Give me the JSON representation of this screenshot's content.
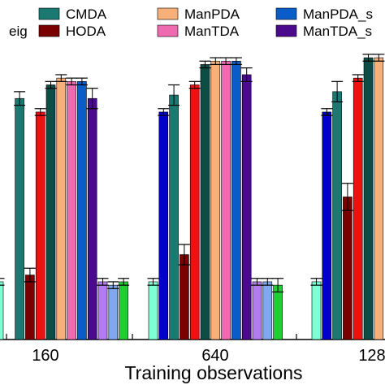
{
  "chart_data": {
    "type": "bar",
    "xlabel": "Training observations",
    "ylabel": "",
    "title": "",
    "categories": [
      "160",
      "640",
      "128"
    ],
    "ylim": [
      0,
      1
    ],
    "grid": false,
    "legend_position": "top",
    "series": [
      {
        "name": "",
        "color": "#7fffd4",
        "values": [
          0.17,
          0.17,
          0.17
        ],
        "errors": [
          0.01,
          0.01,
          0.01
        ]
      },
      {
        "name": "eig",
        "color": "#0000cc",
        "values": [
          null,
          0.67,
          0.67
        ],
        "errors": [
          0.01,
          0.01,
          0.01
        ]
      },
      {
        "name": "CMDA",
        "color": "#1a7a72",
        "values": [
          0.71,
          0.72,
          0.73
        ],
        "errors": [
          0.02,
          0.03,
          0.03
        ]
      },
      {
        "name": "HODA",
        "color": "#7a0000",
        "values": [
          0.19,
          0.25,
          0.42
        ],
        "errors": [
          0.02,
          0.03,
          0.04
        ]
      },
      {
        "name": "",
        "color": "#ee1111",
        "values": [
          0.67,
          0.75,
          0.77
        ],
        "errors": [
          0.01,
          0.01,
          0.01
        ]
      },
      {
        "name": "",
        "color": "#0d4d44",
        "values": [
          0.75,
          0.81,
          0.83
        ],
        "errors": [
          0.01,
          0.01,
          0.01
        ]
      },
      {
        "name": "ManPDA",
        "color": "#f7b07a",
        "values": [
          0.77,
          0.82,
          0.83
        ],
        "errors": [
          0.01,
          0.01,
          0.01
        ]
      },
      {
        "name": "ManTDA",
        "color": "#f06ab0",
        "values": [
          0.76,
          0.82,
          null
        ],
        "errors": [
          0.01,
          0.01,
          0.01
        ]
      },
      {
        "name": "ManPDA_s",
        "color": "#0a5cc8",
        "values": [
          0.76,
          0.82,
          null
        ],
        "errors": [
          0.01,
          0.01,
          0.01
        ]
      },
      {
        "name": "ManTDA_s",
        "color": "#4b0a8c",
        "values": [
          0.71,
          0.78,
          null
        ],
        "errors": [
          0.03,
          0.02,
          0.02
        ]
      },
      {
        "name": "",
        "color": "#b27cf0",
        "values": [
          0.17,
          0.17,
          null
        ],
        "errors": [
          0.01,
          0.01,
          0.01
        ]
      },
      {
        "name": "",
        "color": "#7fa8f0",
        "values": [
          0.16,
          0.17,
          null
        ],
        "errors": [
          0.01,
          0.01,
          0.01
        ]
      },
      {
        "name": "",
        "color": "#22cc33",
        "values": [
          0.17,
          0.16,
          null
        ],
        "errors": [
          0.01,
          0.02,
          0.01
        ]
      }
    ]
  }
}
